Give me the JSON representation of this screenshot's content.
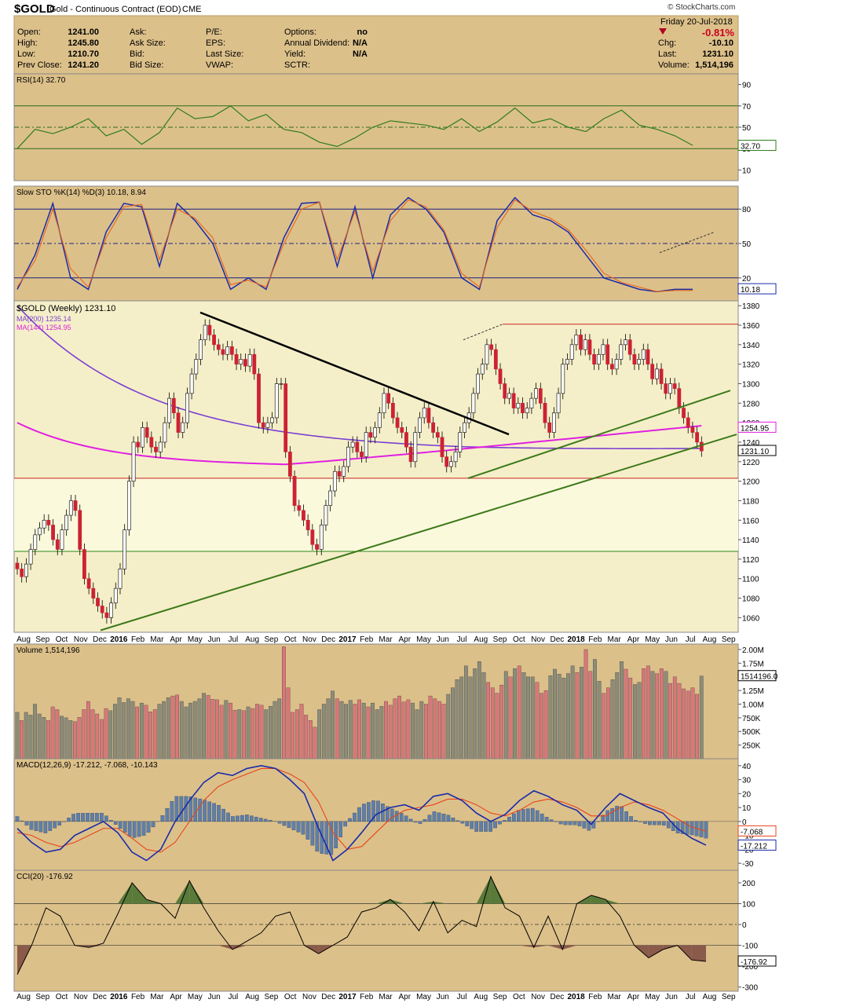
{
  "header": {
    "symbol": "$GOLD",
    "name": "Gold - Continuous Contract (EOD)",
    "exchange": "CME",
    "brand": "© StockCharts.com",
    "date": "Friday  20-Jul-2018",
    "change_pct": "-0.81%",
    "stats": [
      {
        "label": "Open:",
        "value": "1241.00"
      },
      {
        "label": "High:",
        "value": "1245.80"
      },
      {
        "label": "Low:",
        "value": "1210.70"
      },
      {
        "label": "Prev Close:",
        "value": "1241.20"
      }
    ],
    "stats2": [
      "Ask:",
      "Ask Size:",
      "Bid:",
      "Bid Size:"
    ],
    "stats3": [
      "P/E:",
      "EPS:",
      "Last Size:",
      "VWAP:"
    ],
    "stats4": [
      {
        "label": "Options:",
        "value": "no"
      },
      {
        "label": "Annual Dividend:",
        "value": "N/A"
      },
      {
        "label": "Yield:",
        "value": "N/A"
      },
      {
        "label": "SCTR:",
        "value": ""
      }
    ],
    "right_stats": [
      {
        "label": "Chg:",
        "value": "-10.10"
      },
      {
        "label": "Last:",
        "value": "1231.10"
      },
      {
        "label": "Volume:",
        "value": "1,514,196"
      }
    ],
    "colors": {
      "panel_bg": "#dcc08a",
      "price_bg": "#f5efc9",
      "price_light": "#fbf9dc",
      "up": "#b0b0b0",
      "down": "#cc2233"
    }
  },
  "chart_data": [
    {
      "type": "line",
      "panel": "rsi",
      "title": "RSI(14) 32.70",
      "y_ticks": [
        10,
        30,
        50,
        70,
        90
      ],
      "ylim": [
        0,
        100
      ],
      "current_label": "32.70",
      "x": [
        0,
        4,
        8,
        12,
        16,
        20,
        24,
        28,
        32,
        36,
        40,
        44,
        48,
        52,
        56,
        60,
        64,
        68,
        72,
        76,
        80,
        84,
        88,
        92,
        96,
        100,
        104,
        108,
        112,
        116,
        120,
        124,
        128,
        132,
        136,
        140,
        144,
        148,
        152
      ],
      "values": [
        30,
        48,
        44,
        50,
        58,
        42,
        48,
        34,
        45,
        68,
        58,
        60,
        70,
        56,
        62,
        48,
        45,
        36,
        32,
        40,
        50,
        56,
        54,
        52,
        48,
        58,
        46,
        55,
        68,
        54,
        58,
        50,
        46,
        58,
        66,
        52,
        48,
        42,
        33
      ]
    },
    {
      "type": "line",
      "panel": "stochastics",
      "title": "Slow STO %K(14) %D(3) 10.18, 8.94",
      "y_ticks": [
        20,
        50,
        80
      ],
      "ylim": [
        0,
        100
      ],
      "current_label": "10.18",
      "series": [
        {
          "name": "%K(14)",
          "x": [
            0,
            4,
            8,
            12,
            16,
            20,
            24,
            28,
            32,
            36,
            40,
            44,
            48,
            52,
            56,
            60,
            64,
            68,
            72,
            76,
            80,
            84,
            88,
            92,
            96,
            100,
            104,
            108,
            112,
            116,
            120,
            124,
            128,
            132,
            136,
            140,
            144,
            148,
            152
          ],
          "values": [
            10,
            40,
            85,
            20,
            10,
            60,
            85,
            82,
            30,
            85,
            70,
            50,
            10,
            20,
            10,
            55,
            85,
            86,
            30,
            82,
            20,
            75,
            90,
            80,
            60,
            20,
            10,
            70,
            90,
            75,
            70,
            60,
            40,
            20,
            15,
            10,
            8,
            10,
            10
          ]
        },
        {
          "name": "%D(3)",
          "x": [
            0,
            4,
            8,
            12,
            16,
            20,
            24,
            28,
            32,
            36,
            40,
            44,
            48,
            52,
            56,
            60,
            64,
            68,
            72,
            76,
            80,
            84,
            88,
            92,
            96,
            100,
            104,
            108,
            112,
            116,
            120,
            124,
            128,
            132,
            136,
            140,
            144,
            148,
            152
          ],
          "values": [
            12,
            35,
            80,
            28,
            12,
            55,
            82,
            84,
            36,
            80,
            72,
            55,
            14,
            18,
            12,
            50,
            80,
            86,
            36,
            78,
            26,
            70,
            88,
            82,
            62,
            24,
            12,
            64,
            88,
            78,
            72,
            62,
            44,
            24,
            16,
            12,
            8,
            9,
            9
          ]
        }
      ]
    },
    {
      "type": "candlestick",
      "panel": "price",
      "title": "$GOLD (Weekly) 1231.10",
      "legend": [
        {
          "name": "MA(200) 1235.14",
          "color": "#7b3fd1"
        },
        {
          "name": "MA(144) 1254.95",
          "color": "#e020e0"
        }
      ],
      "y_ticks": [
        1060,
        1080,
        1100,
        1120,
        1140,
        1160,
        1180,
        1200,
        1220,
        1240,
        1260,
        1280,
        1300,
        1320,
        1340,
        1360,
        1380
      ],
      "ylim": [
        1045,
        1385
      ],
      "value_labels": [
        "1254.95",
        "1231.10"
      ],
      "closes": [
        1110,
        1102,
        1115,
        1130,
        1145,
        1152,
        1160,
        1155,
        1140,
        1130,
        1150,
        1165,
        1180,
        1170,
        1130,
        1100,
        1090,
        1080,
        1072,
        1065,
        1060,
        1075,
        1090,
        1110,
        1150,
        1200,
        1240,
        1235,
        1255,
        1245,
        1235,
        1230,
        1240,
        1260,
        1285,
        1270,
        1250,
        1260,
        1290,
        1310,
        1325,
        1345,
        1360,
        1350,
        1340,
        1335,
        1330,
        1338,
        1330,
        1320,
        1325,
        1318,
        1330,
        1310,
        1260,
        1255,
        1260,
        1265,
        1300,
        1300,
        1230,
        1205,
        1175,
        1170,
        1160,
        1150,
        1135,
        1130,
        1155,
        1175,
        1190,
        1210,
        1205,
        1215,
        1235,
        1240,
        1230,
        1225,
        1250,
        1245,
        1255,
        1270,
        1290,
        1280,
        1265,
        1255,
        1250,
        1235,
        1220,
        1250,
        1265,
        1275,
        1260,
        1250,
        1245,
        1225,
        1215,
        1220,
        1230,
        1250,
        1260,
        1270,
        1290,
        1310,
        1320,
        1340,
        1335,
        1315,
        1300,
        1285,
        1290,
        1275,
        1280,
        1270,
        1275,
        1285,
        1295,
        1280,
        1260,
        1250,
        1270,
        1290,
        1320,
        1325,
        1340,
        1350,
        1335,
        1345,
        1330,
        1320,
        1330,
        1340,
        1320,
        1315,
        1325,
        1340,
        1345,
        1330,
        1320,
        1325,
        1335,
        1320,
        1305,
        1315,
        1300,
        1290,
        1300,
        1295,
        1275,
        1265,
        1255,
        1250,
        1240,
        1231
      ]
    },
    {
      "type": "bar",
      "panel": "volume",
      "title": "Volume 1,514,196",
      "y_ticks_labels": [
        "250K",
        "500K",
        "750K",
        "1.00M",
        "1.25M",
        "1.50M",
        "1.75M",
        "2.00M"
      ],
      "ylim": [
        0,
        2100000
      ],
      "current_label": "1514196.0",
      "values": [
        850000,
        700000,
        850000,
        800000,
        1000000,
        820000,
        760000,
        700000,
        950000,
        900000,
        780000,
        750000,
        700000,
        680000,
        760000,
        900000,
        1050000,
        900000,
        820000,
        720000,
        920000,
        880000,
        1000000,
        1120000,
        1030000,
        1100000,
        1050000,
        950000,
        1020000,
        980000,
        860000,
        900000,
        1000000,
        1050000,
        1120000,
        1150000,
        1170000,
        1050000,
        950000,
        1020000,
        1050000,
        1100000,
        1200000,
        1160000,
        1090000,
        1080000,
        980000,
        1070000,
        1020000,
        890000,
        900000,
        880000,
        950000,
        920000,
        1000000,
        980000,
        900000,
        960000,
        1050000,
        1100000,
        2050000,
        1300000,
        850000,
        900000,
        1000000,
        800000,
        700000,
        580000,
        900000,
        1000000,
        1100000,
        1240000,
        1100000,
        1050000,
        1000000,
        1070000,
        1000000,
        1080000,
        1020000,
        950000,
        1020000,
        900000,
        960000,
        1050000,
        980000,
        1100000,
        1150000,
        1040000,
        1080000,
        1020000,
        900000,
        1050000,
        1000000,
        1150000,
        1100000,
        1050000,
        1000000,
        1180000,
        1300000,
        1450000,
        1500000,
        1700000,
        1500000,
        1650000,
        1780000,
        1580000,
        1400000,
        1300000,
        1200000,
        1350000,
        1600000,
        1500000,
        1650000,
        1700000,
        1580000,
        1500000,
        1500000,
        1400000,
        1200000,
        1250000,
        1520000,
        1640000,
        1550000,
        1480000,
        1560000,
        1700000,
        1580000,
        1680000,
        2000000,
        1600000,
        1820000,
        1420000,
        1200000,
        1300000,
        1450000,
        1580000,
        1780000,
        1640000,
        1480000,
        1360000,
        1400000,
        1650000,
        1700000,
        1600000,
        1560000,
        1650000,
        1600000,
        1380000,
        1500000,
        1380000,
        1280000,
        1240000,
        1300000,
        1180000,
        1514196
      ]
    },
    {
      "type": "line",
      "panel": "macd",
      "title": "MACD(12,26,9) -17.212, -7.068, -10.143",
      "y_ticks": [
        -30,
        -20,
        -10,
        0,
        10,
        20,
        30,
        40
      ],
      "ylim": [
        -35,
        45
      ],
      "value_labels": [
        "-7.068",
        "-17.212"
      ],
      "series": [
        {
          "name": "MACD",
          "values": [
            -5,
            -15,
            -22,
            -20,
            -10,
            -5,
            0,
            -8,
            -22,
            -28,
            -20,
            0,
            15,
            28,
            35,
            33,
            38,
            40,
            38,
            30,
            20,
            -5,
            -28,
            -20,
            -8,
            5,
            10,
            12,
            8,
            18,
            20,
            15,
            6,
            0,
            5,
            15,
            22,
            18,
            12,
            8,
            -2,
            10,
            20,
            15,
            10,
            6,
            -5,
            -12,
            -17
          ]
        },
        {
          "name": "Signal",
          "values": [
            -8,
            -10,
            -15,
            -18,
            -15,
            -10,
            -5,
            -5,
            -12,
            -20,
            -22,
            -15,
            0,
            15,
            25,
            30,
            34,
            38,
            38,
            34,
            28,
            14,
            -8,
            -20,
            -18,
            -8,
            2,
            8,
            10,
            12,
            16,
            16,
            12,
            6,
            4,
            8,
            14,
            16,
            14,
            10,
            4,
            4,
            10,
            14,
            12,
            8,
            2,
            -4,
            -7
          ]
        }
      ]
    },
    {
      "type": "line",
      "panel": "cci",
      "title": "CCI(20) -176.92",
      "y_ticks": [
        -300,
        -200,
        -100,
        0,
        100,
        200
      ],
      "ylim": [
        -320,
        260
      ],
      "current_label": "-176.92",
      "values": [
        -240,
        -100,
        80,
        40,
        -100,
        -110,
        -90,
        50,
        200,
        120,
        100,
        30,
        210,
        80,
        -30,
        -120,
        -80,
        -40,
        40,
        60,
        -100,
        -140,
        -100,
        -60,
        60,
        80,
        120,
        60,
        -30,
        110,
        -40,
        20,
        -10,
        230,
        80,
        40,
        -110,
        40,
        -120,
        100,
        140,
        120,
        40,
        -100,
        -160,
        -120,
        -100,
        -170,
        -177
      ]
    }
  ],
  "x_axis": {
    "labels": [
      "Aug",
      "Sep",
      "Oct",
      "Nov",
      "Dec",
      "2016",
      "Feb",
      "Mar",
      "Apr",
      "May",
      "Jun",
      "Jul",
      "Aug",
      "Sep",
      "Oct",
      "Nov",
      "Dec",
      "2017",
      "Feb",
      "Mar",
      "Apr",
      "May",
      "Jun",
      "Jul",
      "Aug",
      "Sep",
      "Oct",
      "Nov",
      "Dec",
      "2018",
      "Feb",
      "Mar",
      "Apr",
      "May",
      "Jun",
      "Jul",
      "Aug",
      "Sep"
    ],
    "bold": [
      "2016",
      "2017",
      "2018"
    ]
  }
}
